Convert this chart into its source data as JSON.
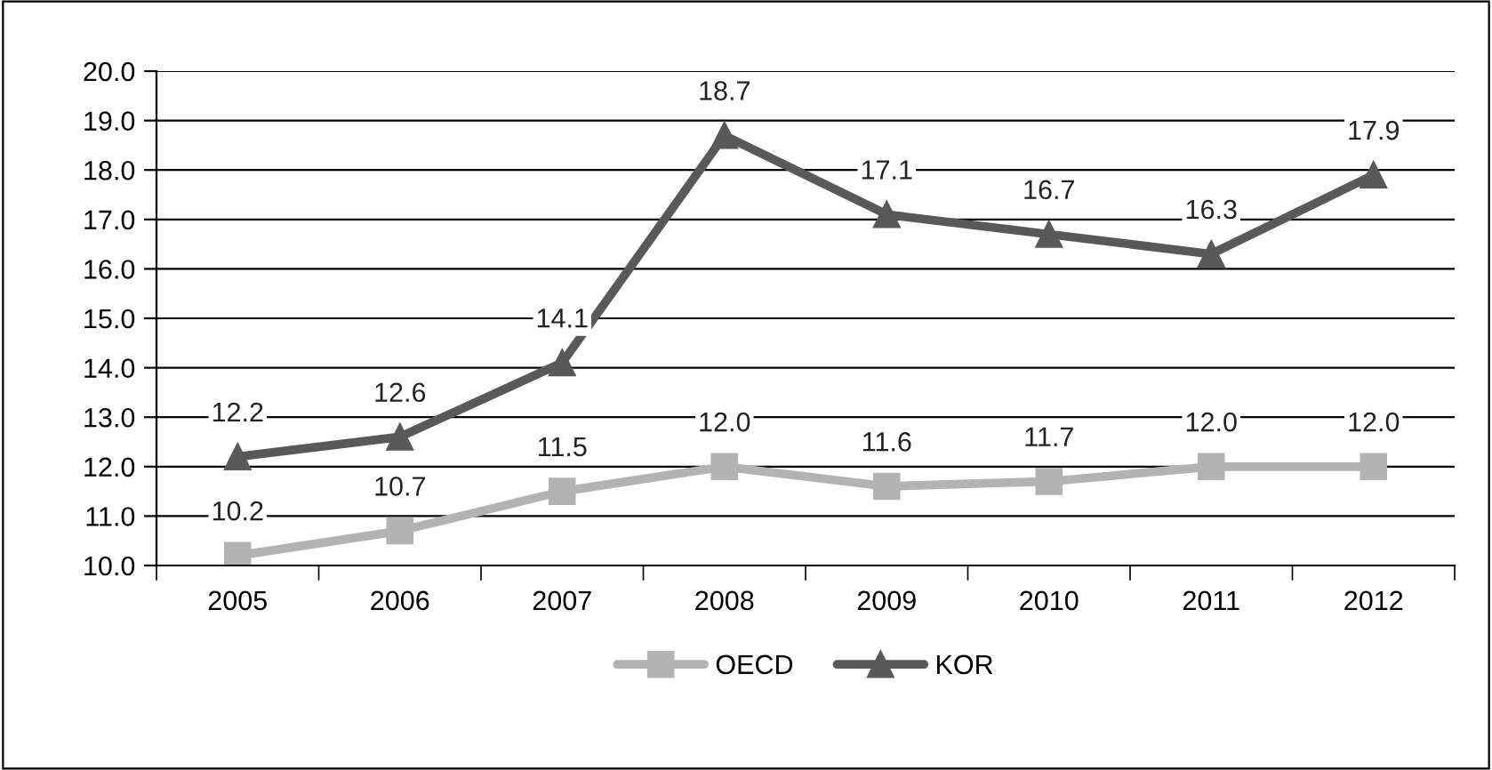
{
  "chart_data": {
    "type": "line",
    "categories": [
      "2005",
      "2006",
      "2007",
      "2008",
      "2009",
      "2010",
      "2011",
      "2012"
    ],
    "series": [
      {
        "name": "OECD",
        "color": "#b3b3b3",
        "marker": "square",
        "values": [
          10.2,
          10.7,
          11.5,
          12.0,
          11.6,
          11.7,
          12.0,
          12.0
        ],
        "value_labels": [
          "10.2",
          "10.7",
          "11.5",
          "12.0",
          "11.6",
          "11.7",
          "12.0",
          "12.0"
        ]
      },
      {
        "name": "KOR",
        "color": "#595959",
        "marker": "triangle",
        "values": [
          12.2,
          12.6,
          14.1,
          18.7,
          17.1,
          16.7,
          16.3,
          17.9
        ],
        "value_labels": [
          "12.2",
          "12.6",
          "14.1",
          "18.7",
          "17.1",
          "16.7",
          "16.3",
          "17.9"
        ]
      }
    ],
    "ylim": [
      10,
      20
    ],
    "yticks": [
      {
        "value": 10,
        "label": "10.0"
      },
      {
        "value": 11,
        "label": "11.0"
      },
      {
        "value": 12,
        "label": "12.0"
      },
      {
        "value": 13,
        "label": "13.0"
      },
      {
        "value": 14,
        "label": "14.0"
      },
      {
        "value": 15,
        "label": "15.0"
      },
      {
        "value": 16,
        "label": "16.0"
      },
      {
        "value": 17,
        "label": "17.0"
      },
      {
        "value": 18,
        "label": "18.0"
      },
      {
        "value": 19,
        "label": "19.0"
      },
      {
        "value": 20,
        "label": "20.0"
      }
    ],
    "grid": "y",
    "legend": "bottom",
    "line_style": "solid"
  }
}
